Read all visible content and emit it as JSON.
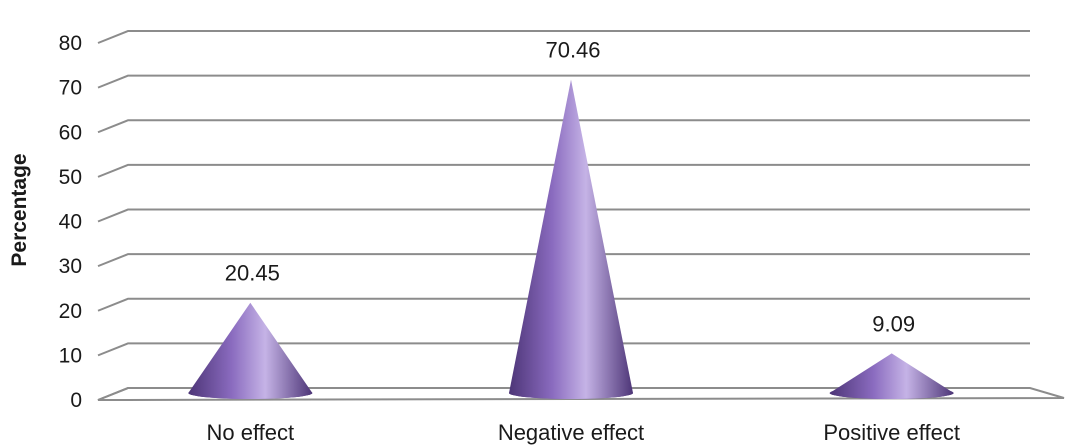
{
  "chart_data": {
    "type": "bar",
    "categories": [
      "No effect",
      "Negative effect",
      "Positive effect"
    ],
    "values": [
      20.45,
      70.46,
      9.09
    ],
    "data_labels": [
      "20.45",
      "70.46",
      "9.09"
    ],
    "ylabel": "Percentage",
    "xlabel": "",
    "ylim": [
      0,
      80
    ],
    "yticks": [
      0,
      10,
      20,
      30,
      40,
      50,
      60,
      70,
      80
    ],
    "grid": true,
    "bar_shape": "cone",
    "colors": {
      "light": "#c5b3e6",
      "mid": "#8a6bbf",
      "dark": "#4d3577",
      "grid": "#8c8c8c"
    }
  }
}
